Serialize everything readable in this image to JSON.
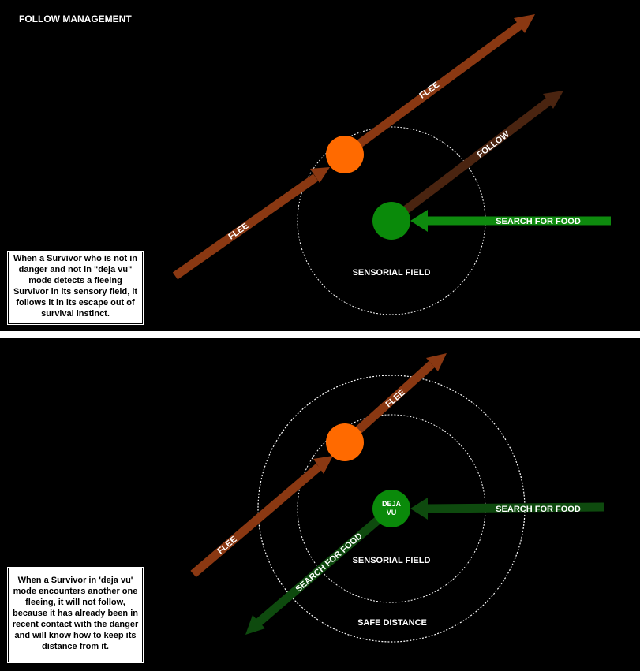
{
  "title": "FOLLOW MANAGEMENT",
  "colors": {
    "background": "#000000",
    "flee_arrow": "#8a3812",
    "follow_arrow": "#4a2410",
    "search_arrow": "#0e8a0e",
    "search_arrow_dim": "#0e4a0e",
    "fleeing_survivor": "#ff6a00",
    "survivor": "#0a8a0a",
    "field_outline": "#ffffff"
  },
  "top_panel": {
    "labels": {
      "flee_upper": "FLEE",
      "flee_lower": "FLEE",
      "follow": "FOLLOW",
      "search_for_food": "SEARCH FOR FOOD",
      "sensorial_field": "SENSORIAL FIELD"
    },
    "note": "When a Survivor who is not in danger and not in \"deja vu\" mode detects a fleeing Survivor in its sensory field, it follows it in its escape out of survival instinct."
  },
  "bottom_panel": {
    "labels": {
      "flee_upper": "FLEE",
      "flee_lower": "FLEE",
      "search_for_food_incoming": "SEARCH FOR FOOD",
      "search_for_food_outgoing": "SEARCH FOR FOOD",
      "survivor_mode_line1": "DEJA",
      "survivor_mode_line2": "VU",
      "sensorial_field": "SENSORIAL FIELD",
      "safe_distance": "SAFE DISTANCE"
    },
    "note": "When a Survivor in 'deja vu' mode encounters another one fleeing, it will not follow, because it has already been in recent contact with the danger and will know how to keep its distance from it."
  }
}
